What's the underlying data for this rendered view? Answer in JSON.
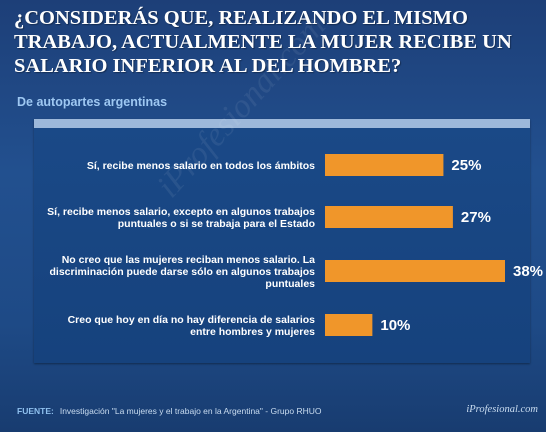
{
  "header": {
    "title": "¿CONSIDERÁS QUE, REALIZANDO EL MISMO TRABAJO, ACTUALMENTE LA MUJER RECIBE UN SALARIO INFERIOR AL DEL HOMBRE?",
    "subtitle": "De autopartes argentinas"
  },
  "footer": {
    "source_label": "FUENTE:",
    "source_text": "Investigación \"La mujeres y el trabajo en la Argentina\" - Grupo RHUO",
    "brand": "iProfesional.com"
  },
  "colors": {
    "bar": "#f0962a",
    "panel_top_border": "#9db8da"
  },
  "chart_data": {
    "type": "bar",
    "orientation": "horizontal",
    "categories": [
      [
        "Sí, recibe menos salario en todos los ámbitos"
      ],
      [
        "Sí, recibe menos salario, excepto en algunos trabajos",
        "puntuales o si se trabaja para el Estado"
      ],
      [
        "No creo que las mujeres reciban menos salario. La",
        "discriminación puede darse sólo en algunos trabajos",
        "puntuales"
      ],
      [
        "Creo que hoy en día no hay diferencia de salarios",
        "entre hombres y mujeres"
      ]
    ],
    "values": [
      25,
      27,
      38,
      10
    ],
    "value_labels": [
      "25%",
      "27%",
      "38%",
      "10%"
    ],
    "unit": "%",
    "xlim": [
      0,
      38
    ],
    "grid": false,
    "legend": "none"
  }
}
